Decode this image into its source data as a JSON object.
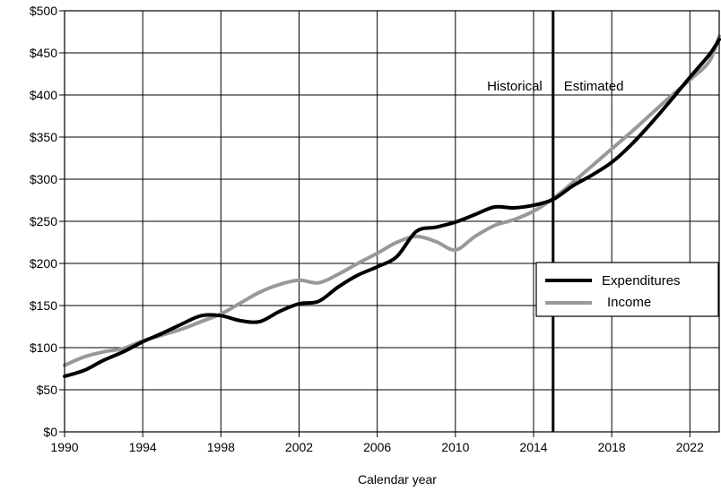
{
  "chart_data": {
    "type": "line",
    "title": "",
    "xlabel": "Calendar year",
    "ylabel": "",
    "xlim": [
      1990,
      2023.5
    ],
    "ylim": [
      0,
      500
    ],
    "x_ticks": [
      1990,
      1994,
      1998,
      2002,
      2006,
      2010,
      2014,
      2018,
      2022
    ],
    "x_tick_labels": [
      "1990",
      "1994",
      "1998",
      "2002",
      "2006",
      "2010",
      "2014",
      "2018",
      "2022"
    ],
    "y_ticks": [
      0,
      50,
      100,
      150,
      200,
      250,
      300,
      350,
      400,
      450,
      500
    ],
    "y_tick_labels": [
      "$0",
      "$50",
      "$100",
      "$150",
      "$200",
      "$250",
      "$300",
      "$350",
      "$400",
      "$450",
      "$500"
    ],
    "grid": true,
    "legend_position": "center-right",
    "divider": {
      "x": 2015,
      "left_label": "Historical",
      "right_label": "Estimated"
    },
    "series": [
      {
        "name": "Expenditures",
        "color": "#000000",
        "x": [
          1990,
          1991,
          1992,
          1993,
          1994,
          1995,
          1996,
          1997,
          1998,
          1999,
          2000,
          2001,
          2002,
          2003,
          2004,
          2005,
          2006,
          2007,
          2008,
          2009,
          2010,
          2011,
          2012,
          2013,
          2014,
          2015,
          2016,
          2017,
          2018,
          2019,
          2020,
          2021,
          2022,
          2023,
          2023.5
        ],
        "y": [
          66,
          73,
          85,
          95,
          107,
          117,
          128,
          138,
          138,
          132,
          131,
          143,
          152,
          155,
          172,
          186,
          196,
          208,
          238,
          243,
          249,
          258,
          267,
          266,
          269,
          276,
          292,
          305,
          320,
          341,
          366,
          393,
          421,
          448,
          466
        ]
      },
      {
        "name": "Income",
        "color": "#999999",
        "x": [
          1990,
          1991,
          1992,
          1993,
          1994,
          1995,
          1996,
          1997,
          1998,
          1999,
          2000,
          2001,
          2002,
          2003,
          2004,
          2005,
          2006,
          2007,
          2008,
          2009,
          2010,
          2011,
          2012,
          2013,
          2014,
          2015,
          2016,
          2017,
          2018,
          2019,
          2020,
          2021,
          2022,
          2023,
          2023.5
        ],
        "y": [
          79,
          89,
          95,
          99,
          108,
          115,
          122,
          131,
          140,
          153,
          166,
          175,
          180,
          177,
          187,
          200,
          212,
          225,
          232,
          226,
          216,
          232,
          245,
          252,
          262,
          277,
          296,
          316,
          336,
          356,
          377,
          398,
          418,
          440,
          470
        ]
      }
    ]
  }
}
